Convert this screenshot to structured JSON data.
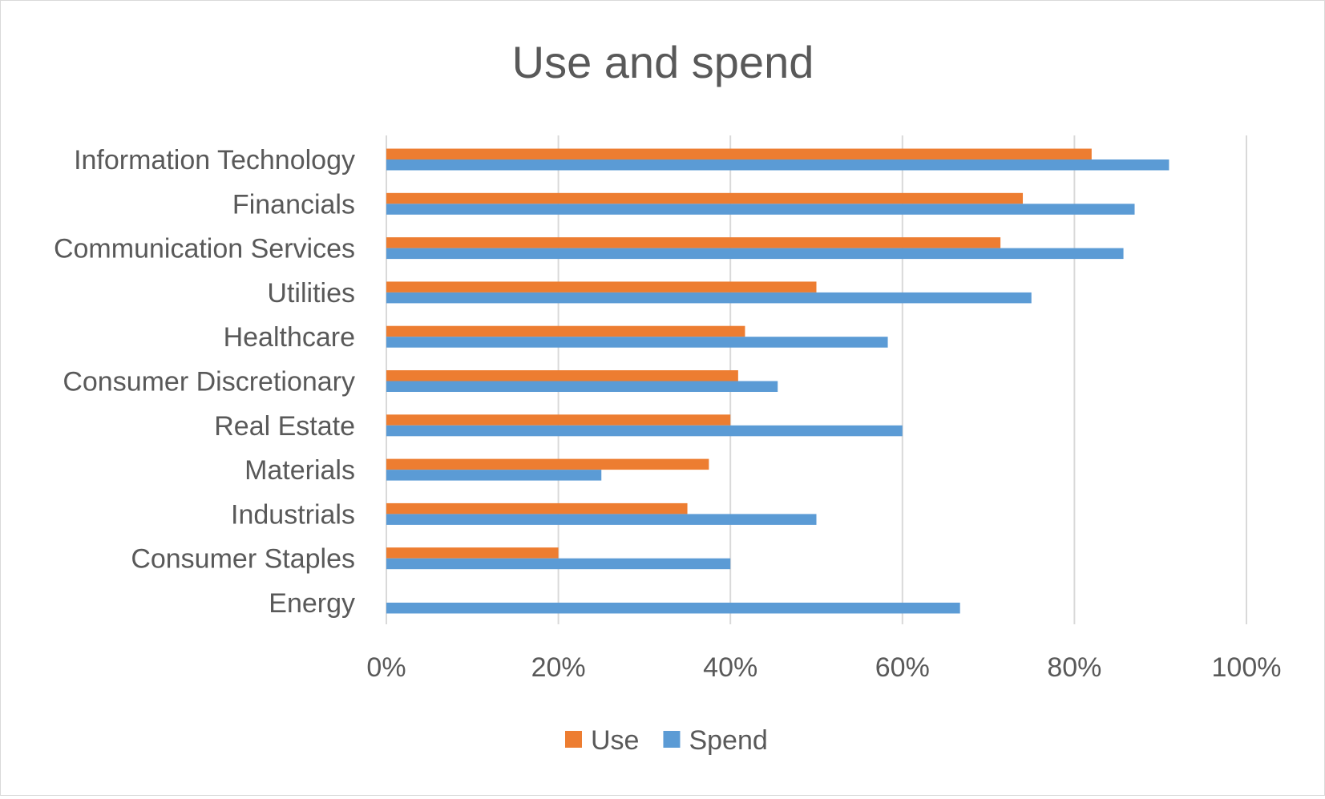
{
  "chart_data": {
    "type": "bar",
    "orientation": "horizontal",
    "title": "Use and spend",
    "xlabel": "",
    "ylabel": "",
    "xlim": [
      0,
      1
    ],
    "x_ticks": [
      "0%",
      "20%",
      "40%",
      "60%",
      "80%",
      "100%"
    ],
    "grid": "vertical",
    "legend_position": "bottom",
    "categories": [
      "Information Technology",
      "Financials",
      "Communication Services",
      "Utilities",
      "Healthcare",
      "Consumer Discretionary",
      "Real Estate",
      "Materials",
      "Industrials",
      "Consumer Staples",
      "Energy"
    ],
    "series": [
      {
        "name": "Use",
        "color": "#ed7d31",
        "values": [
          0.82,
          0.74,
          0.714,
          0.5,
          0.417,
          0.409,
          0.4,
          0.375,
          0.35,
          0.2,
          0.0
        ]
      },
      {
        "name": "Spend",
        "color": "#5b9bd5",
        "values": [
          0.91,
          0.87,
          0.857,
          0.75,
          0.583,
          0.455,
          0.6,
          0.25,
          0.5,
          0.4,
          0.667
        ]
      }
    ]
  }
}
